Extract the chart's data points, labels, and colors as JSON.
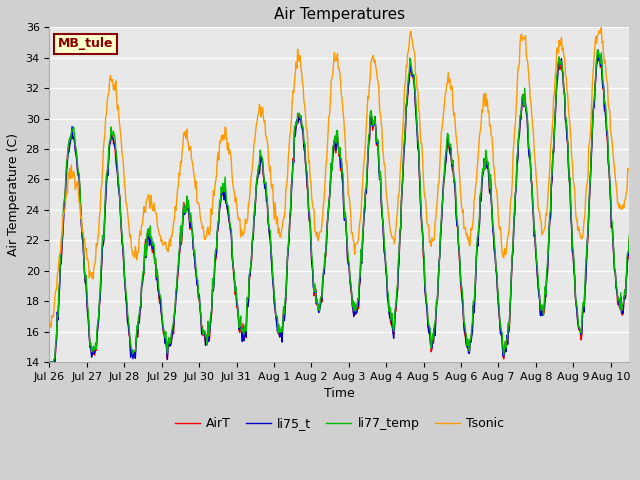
{
  "title": "Air Temperatures",
  "xlabel": "Time",
  "ylabel": "Air Temperature (C)",
  "ylim": [
    14,
    36
  ],
  "yticks": [
    14,
    16,
    18,
    20,
    22,
    24,
    26,
    28,
    30,
    32,
    34,
    36
  ],
  "legend_labels": [
    "AirT",
    "li75_t",
    "li77_temp",
    "Tsonic"
  ],
  "legend_colors": [
    "#ff0000",
    "#0000cc",
    "#00bb00",
    "#ff9900"
  ],
  "box_label": "MB_tule",
  "box_facecolor": "#ffffcc",
  "box_edgecolor": "#880000",
  "box_textcolor": "#880000",
  "fig_facecolor": "#d0d0d0",
  "plot_facecolor": "#e8e8e8",
  "xtick_labels": [
    "Jul 26",
    "Jul 27",
    "Jul 28",
    "Jul 29",
    "Jul 30",
    "Jul 31",
    "Aug 1",
    "Aug 2",
    "Aug 3",
    "Aug 4",
    "Aug 5",
    "Aug 6",
    "Aug 7",
    "Aug 8",
    "Aug 9",
    "Aug 10"
  ],
  "title_fontsize": 11,
  "tick_fontsize": 8,
  "label_fontsize": 9,
  "legend_fontsize": 9,
  "n_days": 15.5,
  "pts_per_day": 48
}
